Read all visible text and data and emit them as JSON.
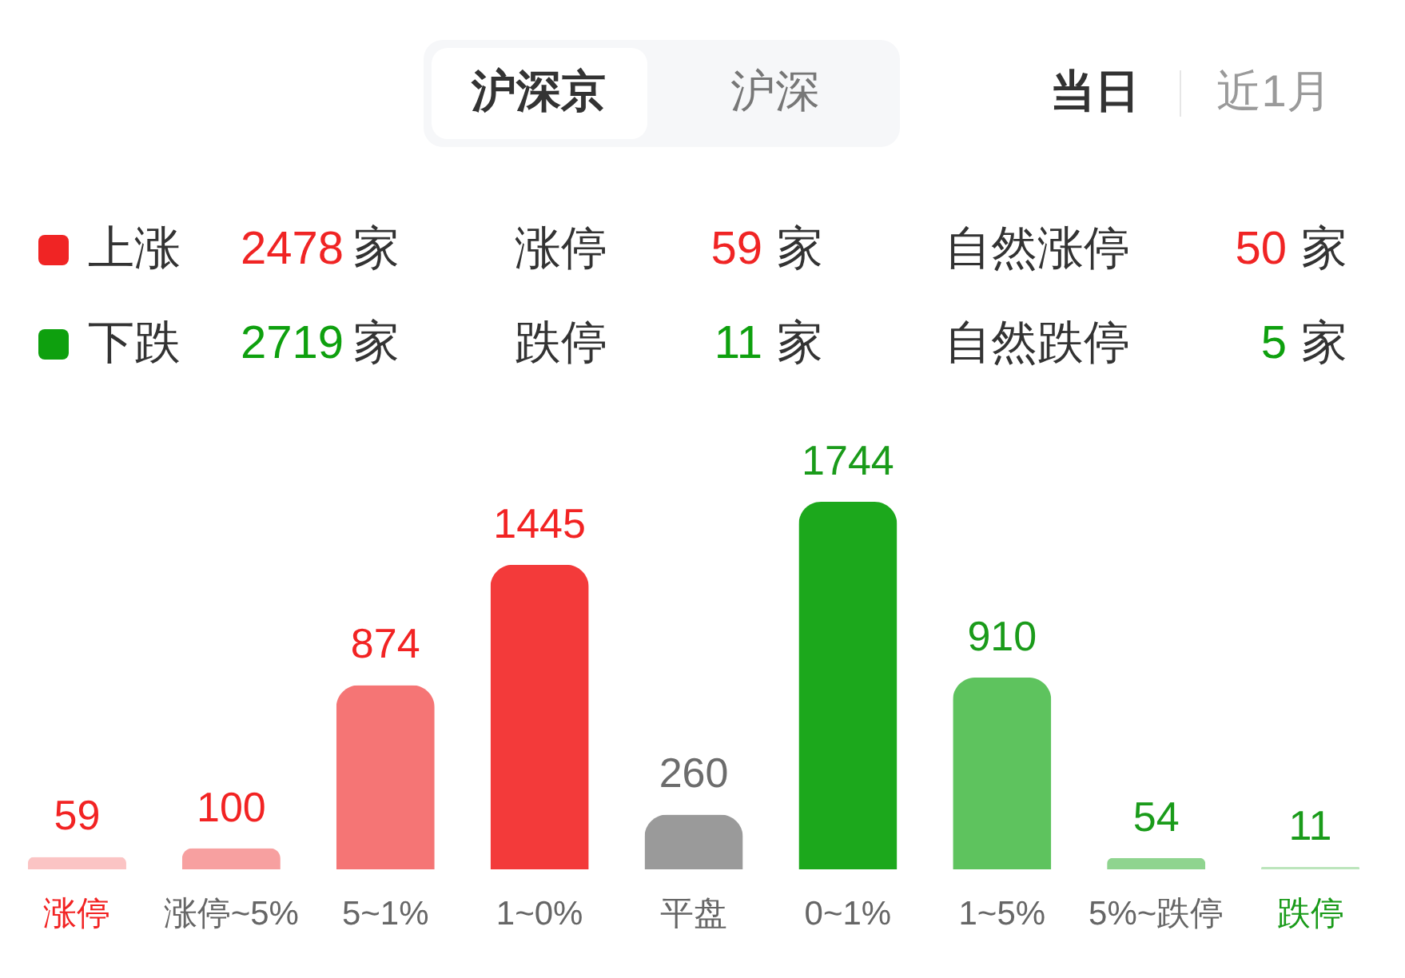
{
  "chart_data": [
    {
      "type": "other",
      "annotations": [
        "沪深京",
        "沪深",
        "当日",
        "近1月",
        "2478",
        "家",
        "涨停",
        "59",
        "家",
        "自然涨停",
        "50",
        "家",
        "2719",
        "家",
        "跌停",
        "11",
        "家",
        "自然跌停",
        "5",
        "家"
      ],
      "series": [
        {
          "name": "上涨",
          "color": "#f02424"
        },
        {
          "name": "下跌",
          "color": "#0ea00e"
        }
      ]
    },
    {
      "type": "bar",
      "categories": [
        "涨停",
        "涨停~5%",
        "5~1%",
        "1~0%",
        "平盘",
        "0~1%",
        "1~5%",
        "5%~跌停",
        "跌停"
      ],
      "values": [
        59,
        100,
        874,
        1445,
        260,
        1744,
        910,
        54,
        11
      ],
      "colors": [
        "#fbc4c4",
        "#f7a0a0",
        "#f57575",
        "#f33a3a",
        "#9a9a9a",
        "#1ca81c",
        "#5ec35e",
        "#8fd48f",
        "#bce5bc"
      ],
      "data_labels": true,
      "tick_labels": "x"
    }
  ]
}
